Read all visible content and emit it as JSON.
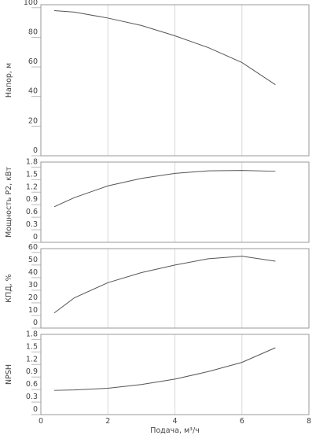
{
  "chart_data": [
    {
      "type": "line",
      "y_label": "Напор, м",
      "xlim": [
        0,
        8
      ],
      "xticks": [
        0,
        2,
        4,
        6,
        8
      ],
      "ylim": [
        0,
        102
      ],
      "yticks": [
        0,
        20,
        40,
        60,
        80,
        100
      ],
      "x": [
        0.4,
        1,
        2,
        3,
        4,
        5,
        6,
        7
      ],
      "series": [
        {
          "color": "#555555",
          "values": [
            98,
            97,
            93,
            88,
            81,
            73,
            63,
            48
          ]
        }
      ]
    },
    {
      "type": "line",
      "y_label": "Мощность P2, кВт",
      "xlim": [
        0,
        8
      ],
      "xticks": [
        0,
        2,
        4,
        6,
        8
      ],
      "ylim": [
        0,
        1.92
      ],
      "yticks": [
        0,
        0.3,
        0.6,
        0.9,
        1.2,
        1.5,
        1.8
      ],
      "x": [
        0.4,
        1,
        2,
        3,
        4,
        5,
        6,
        7
      ],
      "series": [
        {
          "color": "#555555",
          "values": [
            0.85,
            1.07,
            1.35,
            1.53,
            1.65,
            1.71,
            1.72,
            1.7
          ]
        }
      ]
    },
    {
      "type": "line",
      "y_label": "КПД, %",
      "xlim": [
        0,
        8
      ],
      "xticks": [
        0,
        2,
        4,
        6,
        8
      ],
      "ylim": [
        0,
        63
      ],
      "yticks": [
        0,
        10,
        20,
        30,
        40,
        50,
        60
      ],
      "x": [
        0.4,
        1,
        2,
        3,
        4,
        5,
        6,
        7
      ],
      "series": [
        {
          "color": "#555555",
          "values": [
            12,
            24,
            36,
            44,
            50,
            55,
            57,
            53
          ]
        }
      ]
    },
    {
      "type": "line",
      "y_label": "NPSH",
      "x_label": "Подача, м³/ч",
      "xlim": [
        0,
        8
      ],
      "xticks": [
        0,
        2,
        4,
        6,
        8
      ],
      "ylim": [
        0,
        1.92
      ],
      "yticks": [
        0,
        0.3,
        0.6,
        0.9,
        1.2,
        1.5,
        1.8
      ],
      "x": [
        0.4,
        1,
        2,
        3,
        4,
        5,
        6,
        7
      ],
      "series": [
        {
          "color": "#555555",
          "values": [
            0.58,
            0.59,
            0.63,
            0.72,
            0.85,
            1.03,
            1.25,
            1.6
          ]
        }
      ]
    }
  ]
}
